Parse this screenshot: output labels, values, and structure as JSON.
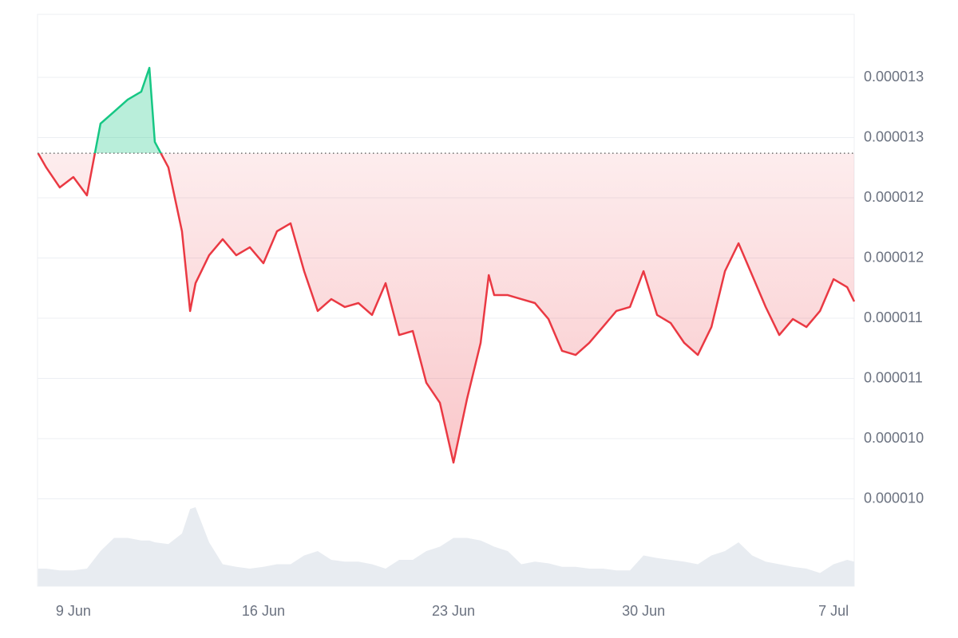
{
  "chart_data": {
    "type": "line",
    "x": [
      -1.3,
      -1,
      -0.5,
      0,
      0.5,
      1,
      1.5,
      2,
      2.5,
      2.8,
      3,
      3.5,
      4,
      4.3,
      4.5,
      5,
      5.5,
      6,
      6.5,
      7,
      7.5,
      8,
      8.5,
      9,
      9.5,
      10,
      10.5,
      11,
      11.5,
      12,
      12.5,
      13,
      13.5,
      14,
      14.5,
      15,
      15.3,
      15.5,
      16,
      16.5,
      17,
      17.5,
      18,
      18.5,
      19,
      19.5,
      20,
      20.5,
      21,
      21.5,
      22,
      22.5,
      23,
      23.5,
      24,
      24.5,
      25,
      25.5,
      26,
      26.5,
      27,
      27.5,
      28,
      28.5,
      28.76
    ],
    "values": [
      1.237e-05,
      1.2252e-05,
      1.2086e-05,
      1.2172e-05,
      1.202e-05,
      1.2616e-05,
      1.2715e-05,
      1.2815e-05,
      1.2881e-05,
      1.3079e-05,
      1.2464e-05,
      1.2252e-05,
      1.1722e-05,
      1.106e-05,
      1.1291e-05,
      1.1523e-05,
      1.1656e-05,
      1.1523e-05,
      1.1589e-05,
      1.1457e-05,
      1.1722e-05,
      1.1788e-05,
      1.1391e-05,
      1.106e-05,
      1.1159e-05,
      1.1093e-05,
      1.1126e-05,
      1.1027e-05,
      1.1291e-05,
      1.0861e-05,
      1.0894e-05,
      1.0464e-05,
      1.0298e-05,
      9.801e-06,
      1.0331e-05,
      1.0795e-05,
      1.1358e-05,
      1.1192e-05,
      1.1192e-05,
      1.1159e-05,
      1.1126e-05,
      1.0993e-05,
      1.0729e-05,
      1.0695e-05,
      1.0795e-05,
      1.0927e-05,
      1.106e-05,
      1.1093e-05,
      1.1391e-05,
      1.1027e-05,
      1.096e-05,
      1.0795e-05,
      1.0695e-05,
      1.0927e-05,
      1.1391e-05,
      1.1622e-05,
      1.1358e-05,
      1.1093e-05,
      1.0861e-05,
      1.0993e-05,
      1.0927e-05,
      1.106e-05,
      1.1324e-05,
      1.1258e-05,
      1.1139e-05
    ],
    "volume": [
      20,
      20,
      18,
      18,
      20,
      40,
      55,
      55,
      52,
      52,
      50,
      48,
      60,
      88,
      90,
      50,
      25,
      22,
      20,
      22,
      25,
      25,
      35,
      40,
      30,
      28,
      28,
      25,
      20,
      30,
      30,
      40,
      45,
      55,
      55,
      52,
      48,
      45,
      40,
      25,
      28,
      26,
      22,
      22,
      20,
      20,
      18,
      18,
      35,
      32,
      30,
      28,
      25,
      35,
      40,
      50,
      35,
      28,
      25,
      22,
      20,
      15,
      25,
      30,
      28
    ],
    "volume_lim": [
      0,
      100
    ],
    "baseline": 1.237e-05,
    "up_color": "#16c784",
    "down_color": "#ea3943",
    "volume_color": "#e8ecf1",
    "xlim": [
      -1.32,
      28.76
    ],
    "xticks": [
      {
        "value": 0,
        "label": "9 Jun"
      },
      {
        "value": 7,
        "label": "16 Jun"
      },
      {
        "value": 14,
        "label": "23 Jun"
      },
      {
        "value": 21,
        "label": "30 Jun"
      },
      {
        "value": 28,
        "label": "7 Jul"
      }
    ],
    "ylim": [
      8.7752e-06,
      1.35232e-05
    ],
    "yticks": [
      1.3e-05,
      {
        "value": 1.25e-05,
        "label": "0.000013"
      },
      1.2e-05,
      {
        "value": 1.15e-05,
        "label": "0.000012"
      },
      1.1e-05,
      {
        "value": 1.05e-05,
        "label": "0.000011"
      },
      {
        "value": 1e-05,
        "label": "0.000010"
      },
      {
        "value": 9.5e-06,
        "label": "0.000010"
      }
    ],
    "grid": true
  }
}
